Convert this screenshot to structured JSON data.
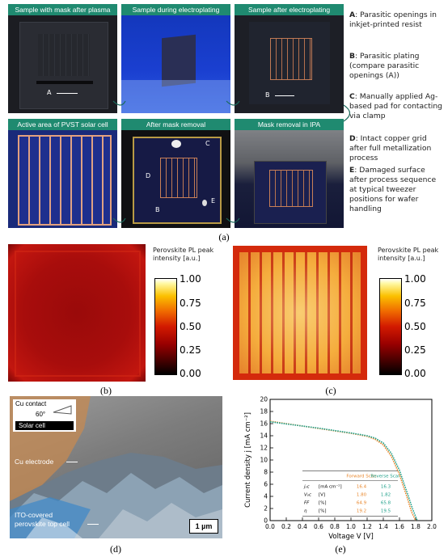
{
  "panel_a": {
    "photos": [
      {
        "label": "Sample with mask after plasma"
      },
      {
        "label": "Sample during electroplating"
      },
      {
        "label": "Sample after electroplating"
      },
      {
        "label": "Active area of PVST solar cell"
      },
      {
        "label": "After mask removal"
      },
      {
        "label": "Mask removal in IPA"
      }
    ],
    "markers": {
      "A": "A",
      "B": "B",
      "C": "C",
      "D": "D",
      "E": "E"
    },
    "notes": [
      {
        "key": "A",
        "text": ": Parasitic openings in inkjet-printed resist"
      },
      {
        "key": "B",
        "text": ": Parasitic plating (compare parasitic openings (A))"
      },
      {
        "key": "C",
        "text": ": Manually applied Ag-based pad for contacting via clamp"
      },
      {
        "key": "D",
        "text": ": Intact copper grid after full metallization process"
      },
      {
        "key": "E",
        "text": ": Damaged surface after process sequence at typical tweezer positions for wafer handling"
      }
    ],
    "caption": "(a)"
  },
  "colorbar": {
    "title": "Perovskite PL peak intensity [a.u.]",
    "ticks": [
      "1.00",
      "0.75",
      "0.50",
      "0.25",
      "0.00"
    ]
  },
  "panel_b": {
    "caption": "(b)"
  },
  "panel_c": {
    "caption": "(c)"
  },
  "panel_d": {
    "caption": "(d)",
    "inset_contact": "Cu contact",
    "inset_angle": "60°",
    "inset_cell": "Solar cell",
    "label_electrode": "Cu electrode",
    "label_ito_1": "ITO-covered",
    "label_ito_2": "perovskite top cell",
    "scale": "1 µm"
  },
  "panel_e": {
    "caption": "(e)",
    "chart_data": {
      "type": "line",
      "xlabel": "Voltage V [V]",
      "ylabel": "Current density j [mA cm⁻²]",
      "xlim": [
        0,
        2.0
      ],
      "ylim": [
        0,
        20
      ],
      "xticks": [
        "0.0",
        "0.2",
        "0.4",
        "0.6",
        "0.8",
        "1.0",
        "1.2",
        "1.4",
        "1.6",
        "1.8",
        "2.0"
      ],
      "yticks": [
        "0",
        "2",
        "4",
        "6",
        "8",
        "10",
        "12",
        "14",
        "16",
        "18",
        "20"
      ],
      "series": [
        {
          "name": "Forward Scan",
          "color": "#e8862a",
          "x": [
            0.0,
            0.2,
            0.4,
            0.6,
            0.8,
            1.0,
            1.2,
            1.3,
            1.4,
            1.5,
            1.6,
            1.7,
            1.75,
            1.8
          ],
          "y": [
            16.4,
            16.0,
            15.6,
            15.2,
            14.8,
            14.4,
            13.9,
            13.4,
            12.5,
            10.6,
            7.6,
            3.6,
            1.4,
            0.0
          ]
        },
        {
          "name": "Reverse Scan",
          "color": "#1fa08a",
          "x": [
            0.0,
            0.2,
            0.4,
            0.6,
            0.8,
            1.0,
            1.2,
            1.3,
            1.4,
            1.5,
            1.6,
            1.7,
            1.76,
            1.82
          ],
          "y": [
            16.3,
            15.95,
            15.6,
            15.25,
            14.85,
            14.45,
            14.0,
            13.6,
            12.8,
            11.1,
            8.3,
            4.4,
            2.0,
            0.0
          ]
        }
      ],
      "table": {
        "headers": [
          "Forward Scan",
          "Reverse Scan"
        ],
        "rows": [
          {
            "param": "jₛc",
            "unit": "[mA cm⁻²]",
            "fwd": "16.4",
            "rev": "16.3"
          },
          {
            "param": "Vₒc",
            "unit": "[V]",
            "fwd": "1.80",
            "rev": "1.82"
          },
          {
            "param": "FF",
            "unit": "[%]",
            "fwd": "64.9",
            "rev": "65.8"
          },
          {
            "param": "η",
            "unit": "[%]",
            "fwd": "19.2",
            "rev": "19.5"
          }
        ]
      }
    }
  }
}
